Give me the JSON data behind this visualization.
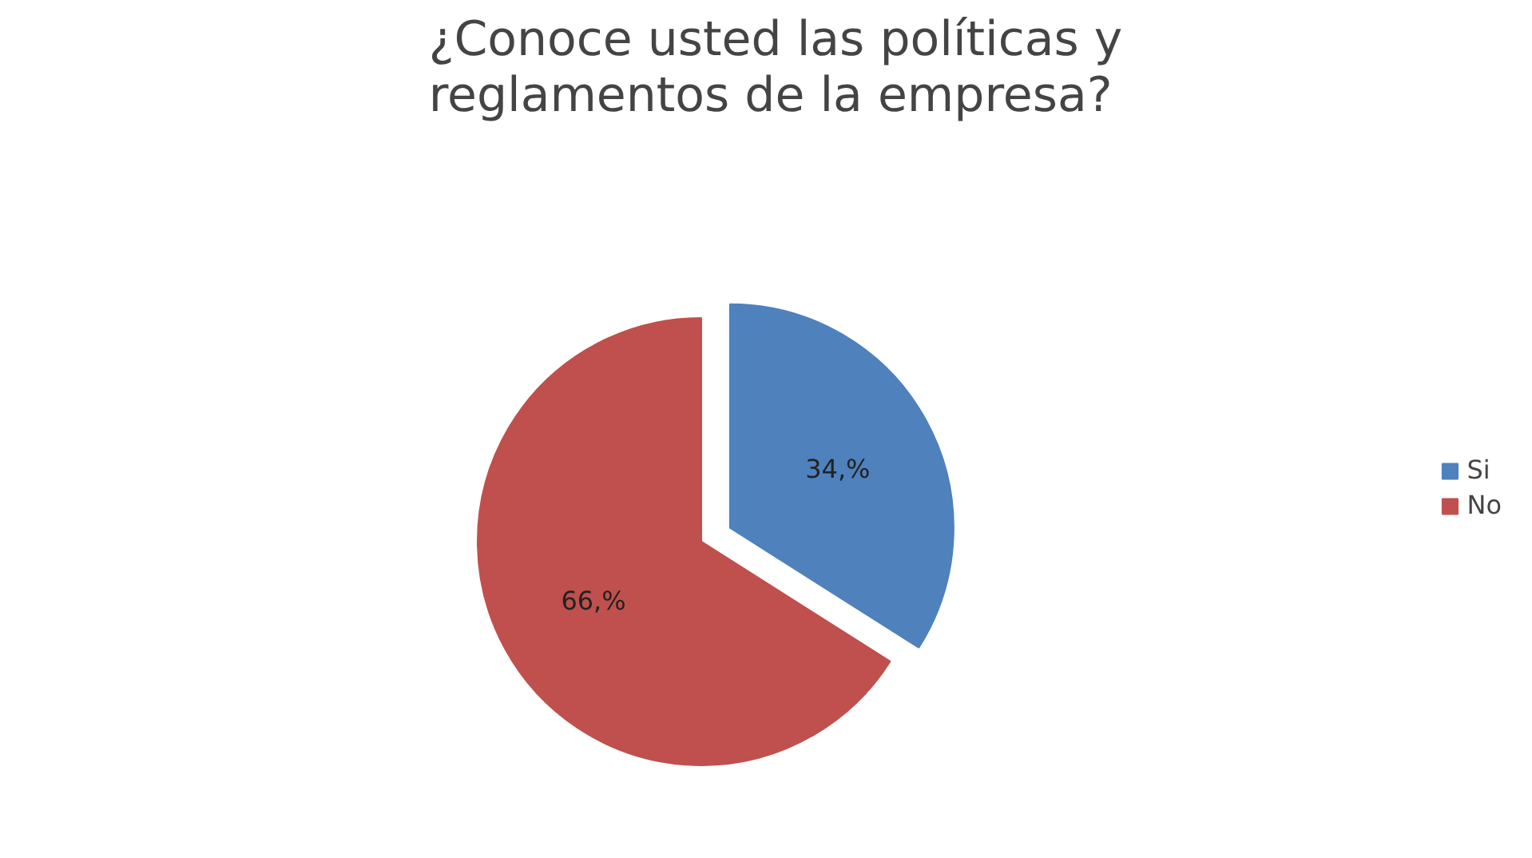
{
  "chart_data": {
    "type": "pie",
    "title": "¿Conoce usted las políticas y reglamentos de la empresa?",
    "categories": [
      "Si",
      "No"
    ],
    "values": [
      34,
      66
    ],
    "colors": [
      "#4f81bd",
      "#c0504d"
    ],
    "value_labels": [
      "34,%",
      "66,%"
    ],
    "legend": "right"
  }
}
